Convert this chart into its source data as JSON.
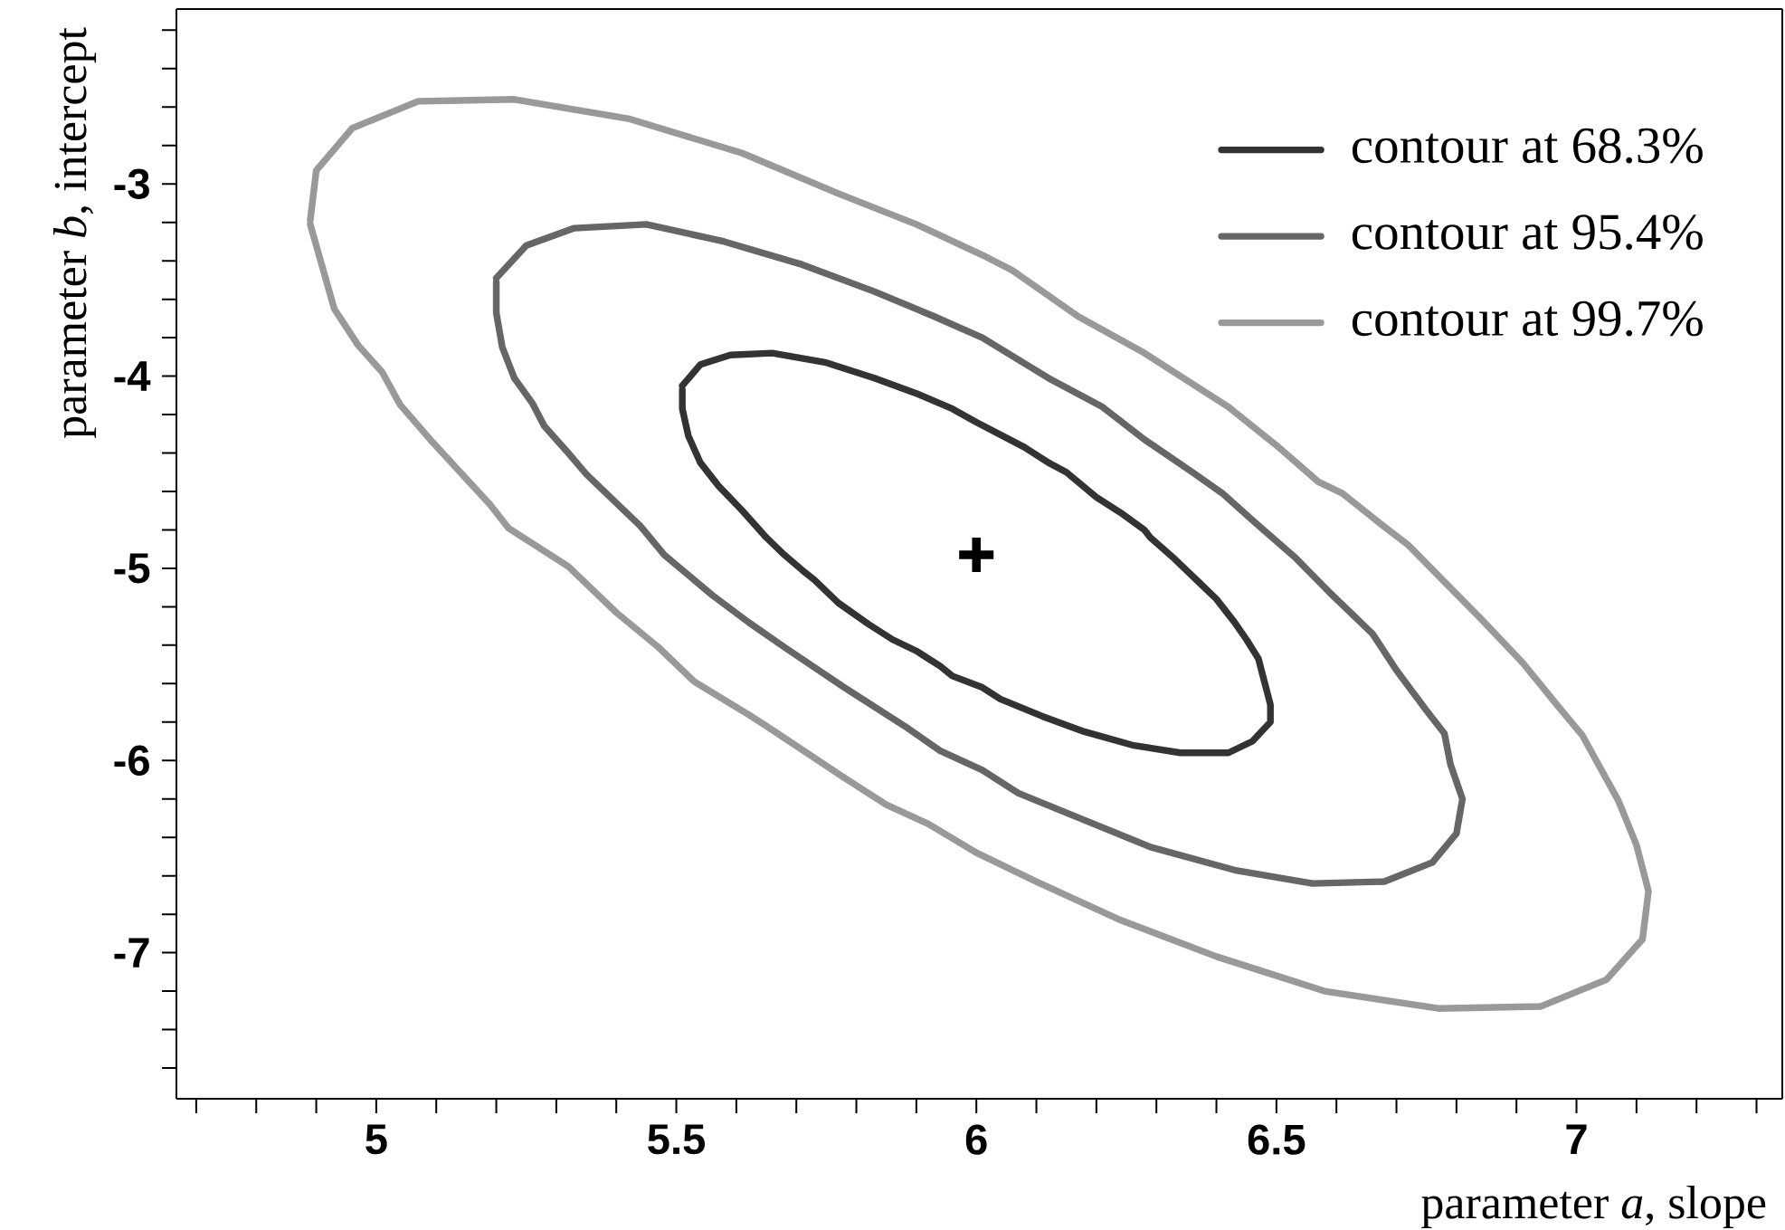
{
  "chart_data": {
    "type": "line",
    "xlabel": "parameter *a*, slope",
    "ylabel": "parameter *b*, intercept",
    "xlim": [
      4.667,
      7.343
    ],
    "ylim": [
      -7.76,
      -2.09
    ],
    "xticks": [
      {
        "value": 4.7,
        "label": null
      },
      {
        "value": 4.8,
        "label": null
      },
      {
        "value": 4.9,
        "label": null
      },
      5,
      {
        "value": 5.1,
        "label": null
      },
      {
        "value": 5.2,
        "label": null
      },
      {
        "value": 5.3,
        "label": null
      },
      {
        "value": 5.4,
        "label": null
      },
      5.5,
      {
        "value": 5.6,
        "label": null
      },
      {
        "value": 5.7,
        "label": null
      },
      {
        "value": 5.8,
        "label": null
      },
      {
        "value": 5.9,
        "label": null
      },
      6,
      {
        "value": 6.1,
        "label": null
      },
      {
        "value": 6.2,
        "label": null
      },
      {
        "value": 6.3,
        "label": null
      },
      {
        "value": 6.4,
        "label": null
      },
      6.5,
      {
        "value": 6.6,
        "label": null
      },
      {
        "value": 6.7,
        "label": null
      },
      {
        "value": 6.8,
        "label": null
      },
      {
        "value": 6.9,
        "label": null
      },
      7,
      {
        "value": 7.1,
        "label": null
      },
      {
        "value": 7.2,
        "label": null
      },
      {
        "value": 7.3,
        "label": null
      }
    ],
    "yticks": [
      {
        "value": -2.2,
        "label": null
      },
      {
        "value": -2.4,
        "label": null
      },
      {
        "value": -2.6,
        "label": null
      },
      {
        "value": -2.8,
        "label": null
      },
      -3,
      {
        "value": -3.2,
        "label": null
      },
      {
        "value": -3.4,
        "label": null
      },
      {
        "value": -3.6,
        "label": null
      },
      {
        "value": -3.8,
        "label": null
      },
      -4,
      {
        "value": -4.2,
        "label": null
      },
      {
        "value": -4.4,
        "label": null
      },
      {
        "value": -4.6,
        "label": null
      },
      {
        "value": -4.8,
        "label": null
      },
      -5,
      {
        "value": -5.2,
        "label": null
      },
      {
        "value": -5.4,
        "label": null
      },
      {
        "value": -5.6,
        "label": null
      },
      {
        "value": -5.8,
        "label": null
      },
      -6,
      {
        "value": -6.2,
        "label": null
      },
      {
        "value": -6.4,
        "label": null
      },
      {
        "value": -6.6,
        "label": null
      },
      {
        "value": -6.8,
        "label": null
      },
      -7,
      {
        "value": -7.2,
        "label": null
      },
      {
        "value": -7.4,
        "label": null
      },
      {
        "value": -7.6,
        "label": null
      }
    ],
    "legend": "top right",
    "series": [
      {
        "name": "contour at 68.3%",
        "color": "#333333",
        "x": [
          5.51,
          5.54,
          5.59,
          5.66,
          5.75,
          5.83,
          5.9,
          5.96,
          6.0,
          6.08,
          6.12,
          6.15,
          6.2,
          6.24,
          6.28,
          6.29,
          6.33,
          6.37,
          6.4,
          6.43,
          6.45,
          6.47,
          6.48,
          6.49,
          6.49,
          6.46,
          6.42,
          6.34,
          6.26,
          6.18,
          6.11,
          6.04,
          6.01,
          5.96,
          5.94,
          5.9,
          5.86,
          5.82,
          5.77,
          5.73,
          5.71,
          5.68,
          5.65,
          5.61,
          5.57,
          5.54,
          5.52,
          5.51,
          5.51
        ],
        "values": [
          -4.05,
          -3.94,
          -3.89,
          -3.88,
          -3.93,
          -4.01,
          -4.09,
          -4.17,
          -4.24,
          -4.37,
          -4.45,
          -4.5,
          -4.63,
          -4.71,
          -4.8,
          -4.84,
          -4.95,
          -5.07,
          -5.16,
          -5.28,
          -5.37,
          -5.47,
          -5.59,
          -5.71,
          -5.8,
          -5.9,
          -5.96,
          -5.96,
          -5.92,
          -5.85,
          -5.77,
          -5.68,
          -5.62,
          -5.56,
          -5.51,
          -5.43,
          -5.37,
          -5.29,
          -5.18,
          -5.06,
          -5.01,
          -4.93,
          -4.84,
          -4.7,
          -4.57,
          -4.45,
          -4.31,
          -4.17,
          -4.07
        ]
      },
      {
        "name": "contour at 95.4%",
        "color": "#666666",
        "x": [
          5.2,
          5.25,
          5.33,
          5.45,
          5.58,
          5.71,
          5.83,
          5.93,
          6.01,
          6.12,
          6.21,
          6.28,
          6.36,
          6.41,
          6.46,
          6.53,
          6.59,
          6.66,
          6.7,
          6.75,
          6.78,
          6.79,
          6.81,
          6.8,
          6.76,
          6.68,
          6.56,
          6.43,
          6.29,
          6.18,
          6.07,
          6.01,
          5.94,
          5.88,
          5.78,
          5.68,
          5.62,
          5.56,
          5.48,
          5.44,
          5.39,
          5.35,
          5.32,
          5.28,
          5.26,
          5.23,
          5.21,
          5.2,
          5.2
        ],
        "values": [
          -3.49,
          -3.32,
          -3.23,
          -3.21,
          -3.3,
          -3.42,
          -3.56,
          -3.69,
          -3.8,
          -4.01,
          -4.16,
          -4.33,
          -4.5,
          -4.61,
          -4.75,
          -4.94,
          -5.13,
          -5.34,
          -5.53,
          -5.74,
          -5.86,
          -6.02,
          -6.2,
          -6.38,
          -6.53,
          -6.63,
          -6.64,
          -6.57,
          -6.45,
          -6.31,
          -6.17,
          -6.05,
          -5.95,
          -5.82,
          -5.62,
          -5.41,
          -5.28,
          -5.14,
          -4.93,
          -4.78,
          -4.63,
          -4.51,
          -4.4,
          -4.26,
          -4.14,
          -4.01,
          -3.85,
          -3.67,
          -3.51
        ]
      },
      {
        "name": "contour at 99.7%",
        "color": "#999999",
        "x": [
          4.89,
          4.9,
          4.96,
          5.07,
          5.23,
          5.42,
          5.61,
          5.77,
          5.9,
          6.01,
          6.06,
          6.17,
          6.28,
          6.42,
          6.5,
          6.57,
          6.61,
          6.67,
          6.72,
          6.78,
          6.84,
          6.91,
          6.97,
          7.01,
          7.07,
          7.1,
          7.12,
          7.11,
          7.05,
          6.94,
          6.77,
          6.58,
          6.4,
          6.24,
          6.1,
          6.0,
          5.92,
          5.85,
          5.78,
          5.65,
          5.62,
          5.53,
          5.47,
          5.4,
          5.32,
          5.22,
          5.19,
          5.14,
          5.09,
          5.04,
          5.01,
          4.97,
          4.93,
          4.91,
          4.89
        ],
        "values": [
          -3.19,
          -2.93,
          -2.71,
          -2.57,
          -2.56,
          -2.66,
          -2.84,
          -3.05,
          -3.21,
          -3.37,
          -3.45,
          -3.69,
          -3.88,
          -4.16,
          -4.36,
          -4.55,
          -4.61,
          -4.76,
          -4.88,
          -5.07,
          -5.26,
          -5.49,
          -5.72,
          -5.87,
          -6.21,
          -6.44,
          -6.68,
          -6.93,
          -7.14,
          -7.28,
          -7.29,
          -7.2,
          -7.02,
          -6.83,
          -6.63,
          -6.48,
          -6.33,
          -6.23,
          -6.09,
          -5.82,
          -5.76,
          -5.59,
          -5.41,
          -5.23,
          -4.99,
          -4.79,
          -4.67,
          -4.5,
          -4.33,
          -4.15,
          -3.98,
          -3.84,
          -3.65,
          -3.43,
          -3.21
        ]
      },
      {
        "type": "scatter",
        "marker": "cross",
        "color": "#000000",
        "x": [
          6.0
        ],
        "values": [
          -4.93
        ]
      }
    ]
  }
}
